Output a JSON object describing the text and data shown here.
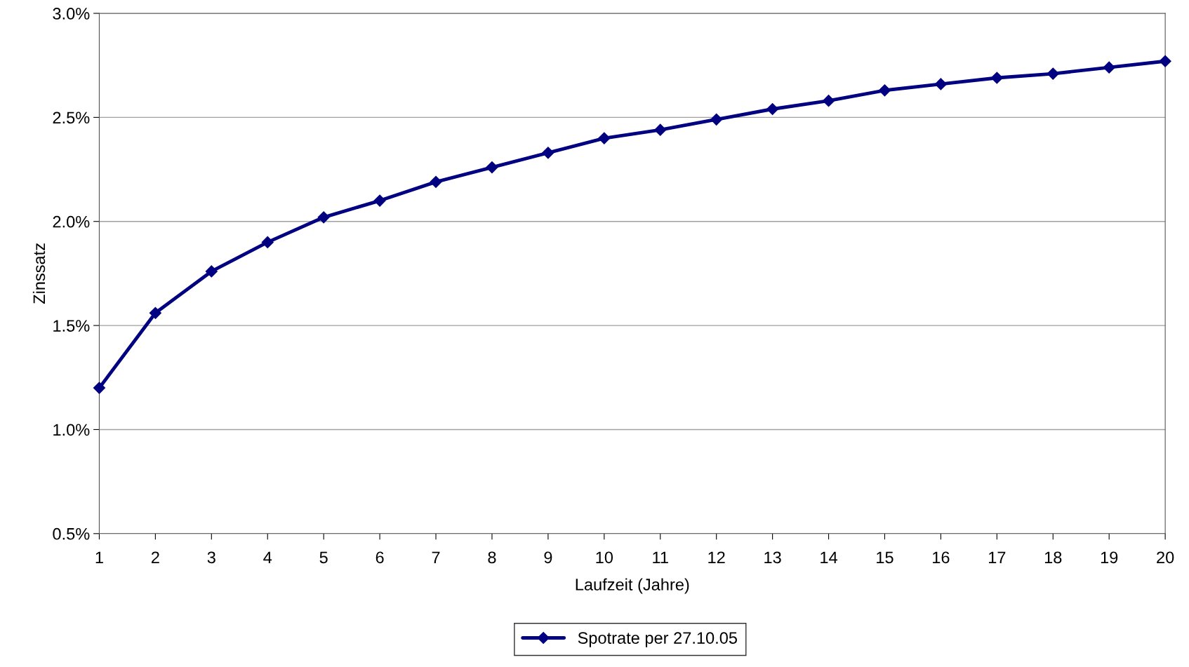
{
  "chart_data": {
    "type": "line",
    "xlabel": "Laufzeit (Jahre)",
    "ylabel": "Zinssatz",
    "x": [
      1,
      2,
      3,
      4,
      5,
      6,
      7,
      8,
      9,
      10,
      11,
      12,
      13,
      14,
      15,
      16,
      17,
      18,
      19,
      20
    ],
    "series": [
      {
        "name": "Spotrate per 27.10.05",
        "color": "#000080",
        "values": [
          1.2,
          1.56,
          1.76,
          1.9,
          2.02,
          2.1,
          2.19,
          2.26,
          2.33,
          2.4,
          2.44,
          2.49,
          2.54,
          2.58,
          2.63,
          2.66,
          2.69,
          2.71,
          2.74,
          2.77
        ]
      }
    ],
    "xlim": [
      1,
      20
    ],
    "xticks": [
      1,
      2,
      3,
      4,
      5,
      6,
      7,
      8,
      9,
      10,
      11,
      12,
      13,
      14,
      15,
      16,
      17,
      18,
      19,
      20
    ],
    "ylim": [
      0.5,
      3.0
    ],
    "yticks": [
      {
        "value": 0.5,
        "label": "0.5%"
      },
      {
        "value": 1.0,
        "label": "1.0%"
      },
      {
        "value": 1.5,
        "label": "1.5%"
      },
      {
        "value": 2.0,
        "label": "2.0%"
      },
      {
        "value": 2.5,
        "label": "2.5%"
      },
      {
        "value": 3.0,
        "label": "3.0%"
      }
    ],
    "grid": "y",
    "legend": "bottom",
    "marker": "diamond",
    "line_style": "solid"
  }
}
